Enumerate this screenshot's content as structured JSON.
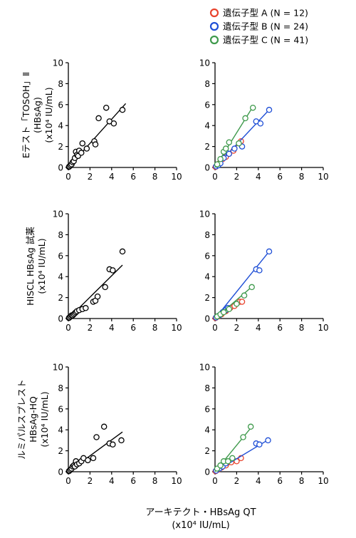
{
  "legend": [
    {
      "label": "遺伝子型 A (N = 12)",
      "color": "#e8432d"
    },
    {
      "label": "遺伝子型 B (N = 24)",
      "color": "#1f4fd6"
    },
    {
      "label": "遺伝子型 C (N = 41)",
      "color": "#3f9a4c"
    }
  ],
  "x_axis_label": {
    "line1": "アーキテクト・HBsAg QT",
    "line2": "(x10⁴ IU/mL)"
  },
  "row_labels": [
    {
      "lines": [
        "Eテスト「TOSOH」Ⅱ",
        "(HBsAg)",
        "(x10⁴ IU/mL)"
      ]
    },
    {
      "lines": [
        "HISCL HBsAg 試薬",
        "(x10⁴ IU/mL)"
      ]
    },
    {
      "lines": [
        "ルミパルスプレスト",
        "HBsAg-HQ",
        "(x10⁴ IU/mL)"
      ]
    }
  ],
  "chart_data": [
    {
      "type": "scatter",
      "row": 1,
      "panel": "all",
      "xlim": [
        0,
        10
      ],
      "ylim": [
        0,
        10
      ],
      "xticks": [
        0,
        2,
        4,
        6,
        8,
        10
      ],
      "yticks": [
        0,
        2,
        4,
        6,
        8,
        10
      ],
      "grid": false,
      "series": [
        {
          "color": "#000000",
          "points": [
            [
              0.05,
              0.05
            ],
            [
              0.1,
              0.1
            ],
            [
              0.2,
              0.2
            ],
            [
              0.3,
              0.3
            ],
            [
              0.4,
              0.5
            ],
            [
              0.5,
              0.6
            ],
            [
              0.6,
              0.9
            ],
            [
              0.7,
              1.5
            ],
            [
              0.8,
              1.2
            ],
            [
              0.9,
              1.1
            ],
            [
              1.0,
              1.6
            ],
            [
              1.2,
              1.4
            ],
            [
              1.3,
              2.3
            ],
            [
              1.7,
              1.8
            ],
            [
              2.4,
              2.5
            ],
            [
              2.5,
              2.2
            ],
            [
              2.8,
              4.7
            ],
            [
              3.5,
              5.7
            ],
            [
              3.8,
              4.4
            ],
            [
              4.2,
              4.2
            ],
            [
              5.0,
              5.5
            ]
          ],
          "fit": [
            [
              0,
              0
            ],
            [
              5.3,
              6.1
            ]
          ]
        }
      ]
    },
    {
      "type": "scatter",
      "row": 1,
      "panel": "genotype",
      "xlim": [
        0,
        10
      ],
      "ylim": [
        0,
        10
      ],
      "xticks": [
        0,
        2,
        4,
        6,
        8,
        10
      ],
      "yticks": [
        0,
        2,
        4,
        6,
        8,
        10
      ],
      "grid": false,
      "series": [
        {
          "color": "#e8432d",
          "points": [
            [
              0.05,
              0.05
            ],
            [
              0.2,
              0.2
            ],
            [
              0.4,
              0.4
            ],
            [
              0.7,
              0.8
            ],
            [
              1.0,
              1.0
            ],
            [
              1.3,
              1.3
            ],
            [
              1.7,
              1.6
            ],
            [
              2.4,
              2.5
            ]
          ],
          "fit": [
            [
              0,
              0
            ],
            [
              2.5,
              2.6
            ]
          ]
        },
        {
          "color": "#1f4fd6",
          "points": [
            [
              0.1,
              0.1
            ],
            [
              0.3,
              0.2
            ],
            [
              0.5,
              0.4
            ],
            [
              0.8,
              0.9
            ],
            [
              1.0,
              1.5
            ],
            [
              1.3,
              1.3
            ],
            [
              1.8,
              1.8
            ],
            [
              2.5,
              2.0
            ],
            [
              3.8,
              4.4
            ],
            [
              4.2,
              4.2
            ],
            [
              5.0,
              5.5
            ]
          ],
          "fit": [
            [
              0,
              0
            ],
            [
              5.0,
              5.5
            ]
          ]
        },
        {
          "color": "#3f9a4c",
          "points": [
            [
              0.2,
              0.3
            ],
            [
              0.5,
              0.8
            ],
            [
              0.8,
              1.5
            ],
            [
              1.0,
              1.8
            ],
            [
              1.3,
              2.4
            ],
            [
              2.2,
              2.3
            ],
            [
              2.8,
              4.7
            ],
            [
              3.5,
              5.7
            ]
          ],
          "fit": [
            [
              0,
              0
            ],
            [
              3.5,
              5.8
            ]
          ]
        }
      ]
    },
    {
      "type": "scatter",
      "row": 2,
      "panel": "all",
      "xlim": [
        0,
        10
      ],
      "ylim": [
        0,
        10
      ],
      "xticks": [
        0,
        2,
        4,
        6,
        8,
        10
      ],
      "yticks": [
        0,
        2,
        4,
        6,
        8,
        10
      ],
      "grid": false,
      "series": [
        {
          "color": "#000000",
          "points": [
            [
              0.05,
              0.05
            ],
            [
              0.1,
              0.1
            ],
            [
              0.2,
              0.2
            ],
            [
              0.3,
              0.3
            ],
            [
              0.4,
              0.3
            ],
            [
              0.5,
              0.4
            ],
            [
              0.6,
              0.5
            ],
            [
              0.7,
              0.6
            ],
            [
              0.8,
              0.7
            ],
            [
              1.0,
              0.8
            ],
            [
              1.3,
              0.9
            ],
            [
              1.6,
              1.0
            ],
            [
              2.3,
              1.6
            ],
            [
              2.5,
              1.7
            ],
            [
              2.7,
              2.1
            ],
            [
              3.4,
              3.0
            ],
            [
              3.8,
              4.7
            ],
            [
              4.1,
              4.6
            ],
            [
              5.0,
              6.4
            ]
          ],
          "fit": [
            [
              0,
              0
            ],
            [
              5.0,
              5.1
            ]
          ]
        }
      ]
    },
    {
      "type": "scatter",
      "row": 2,
      "panel": "genotype",
      "xlim": [
        0,
        10
      ],
      "ylim": [
        0,
        10
      ],
      "xticks": [
        0,
        2,
        4,
        6,
        8,
        10
      ],
      "yticks": [
        0,
        2,
        4,
        6,
        8,
        10
      ],
      "grid": false,
      "series": [
        {
          "color": "#e8432d",
          "points": [
            [
              0.05,
              0.05
            ],
            [
              0.3,
              0.2
            ],
            [
              0.6,
              0.4
            ],
            [
              1.0,
              0.7
            ],
            [
              1.4,
              1.0
            ],
            [
              1.8,
              1.2
            ],
            [
              2.3,
              1.6
            ],
            [
              2.5,
              1.6
            ]
          ],
          "fit": [
            [
              0,
              0
            ],
            [
              2.5,
              1.7
            ]
          ]
        },
        {
          "color": "#1f4fd6",
          "points": [
            [
              0.1,
              0.1
            ],
            [
              0.4,
              0.3
            ],
            [
              0.7,
              0.6
            ],
            [
              1.0,
              0.8
            ],
            [
              1.2,
              1.0
            ],
            [
              3.8,
              4.7
            ],
            [
              4.1,
              4.6
            ],
            [
              5.0,
              6.4
            ]
          ],
          "fit": [
            [
              0,
              0
            ],
            [
              5.0,
              6.4
            ]
          ]
        },
        {
          "color": "#3f9a4c",
          "points": [
            [
              0.2,
              0.2
            ],
            [
              0.5,
              0.4
            ],
            [
              0.8,
              0.6
            ],
            [
              1.3,
              0.9
            ],
            [
              2.0,
              1.4
            ],
            [
              2.7,
              2.2
            ],
            [
              3.4,
              3.0
            ]
          ],
          "fit": [
            [
              0,
              0
            ],
            [
              3.6,
              3.2
            ]
          ]
        }
      ]
    },
    {
      "type": "scatter",
      "row": 3,
      "panel": "all",
      "xlim": [
        0,
        10
      ],
      "ylim": [
        0,
        10
      ],
      "xticks": [
        0,
        2,
        4,
        6,
        8,
        10
      ],
      "yticks": [
        0,
        2,
        4,
        6,
        8,
        10
      ],
      "grid": false,
      "series": [
        {
          "color": "#000000",
          "points": [
            [
              0.05,
              0.05
            ],
            [
              0.1,
              0.1
            ],
            [
              0.2,
              0.2
            ],
            [
              0.3,
              0.3
            ],
            [
              0.4,
              0.5
            ],
            [
              0.5,
              0.6
            ],
            [
              0.6,
              0.5
            ],
            [
              0.7,
              1.0
            ],
            [
              0.8,
              0.7
            ],
            [
              1.0,
              0.8
            ],
            [
              1.2,
              1.0
            ],
            [
              1.4,
              1.3
            ],
            [
              1.8,
              1.1
            ],
            [
              2.3,
              1.3
            ],
            [
              2.6,
              3.3
            ],
            [
              3.3,
              4.3
            ],
            [
              3.8,
              2.7
            ],
            [
              4.1,
              2.6
            ],
            [
              4.9,
              3.0
            ]
          ],
          "fit": [
            [
              0,
              0
            ],
            [
              5.0,
              3.8
            ]
          ]
        }
      ]
    },
    {
      "type": "scatter",
      "row": 3,
      "panel": "genotype",
      "xlim": [
        0,
        10
      ],
      "ylim": [
        0,
        10
      ],
      "xticks": [
        0,
        2,
        4,
        6,
        8,
        10
      ],
      "yticks": [
        0,
        2,
        4,
        6,
        8,
        10
      ],
      "grid": false,
      "series": [
        {
          "color": "#e8432d",
          "points": [
            [
              0.05,
              0.05
            ],
            [
              0.3,
              0.2
            ],
            [
              0.6,
              0.4
            ],
            [
              1.0,
              0.6
            ],
            [
              1.5,
              0.9
            ],
            [
              2.0,
              1.0
            ],
            [
              2.4,
              1.3
            ]
          ],
          "fit": [
            [
              0,
              0
            ],
            [
              2.5,
              1.3
            ]
          ]
        },
        {
          "color": "#1f4fd6",
          "points": [
            [
              0.1,
              0.1
            ],
            [
              0.4,
              0.3
            ],
            [
              0.7,
              0.5
            ],
            [
              1.0,
              0.8
            ],
            [
              3.8,
              2.7
            ],
            [
              4.1,
              2.6
            ],
            [
              4.9,
              3.0
            ]
          ],
          "fit": [
            [
              0,
              0
            ],
            [
              5.0,
              3.1
            ]
          ]
        },
        {
          "color": "#3f9a4c",
          "points": [
            [
              0.2,
              0.3
            ],
            [
              0.5,
              0.6
            ],
            [
              0.8,
              1.0
            ],
            [
              1.2,
              1.0
            ],
            [
              1.6,
              1.3
            ],
            [
              2.6,
              3.3
            ],
            [
              3.3,
              4.3
            ]
          ],
          "fit": [
            [
              0,
              0
            ],
            [
              3.4,
              4.3
            ]
          ]
        }
      ]
    }
  ]
}
